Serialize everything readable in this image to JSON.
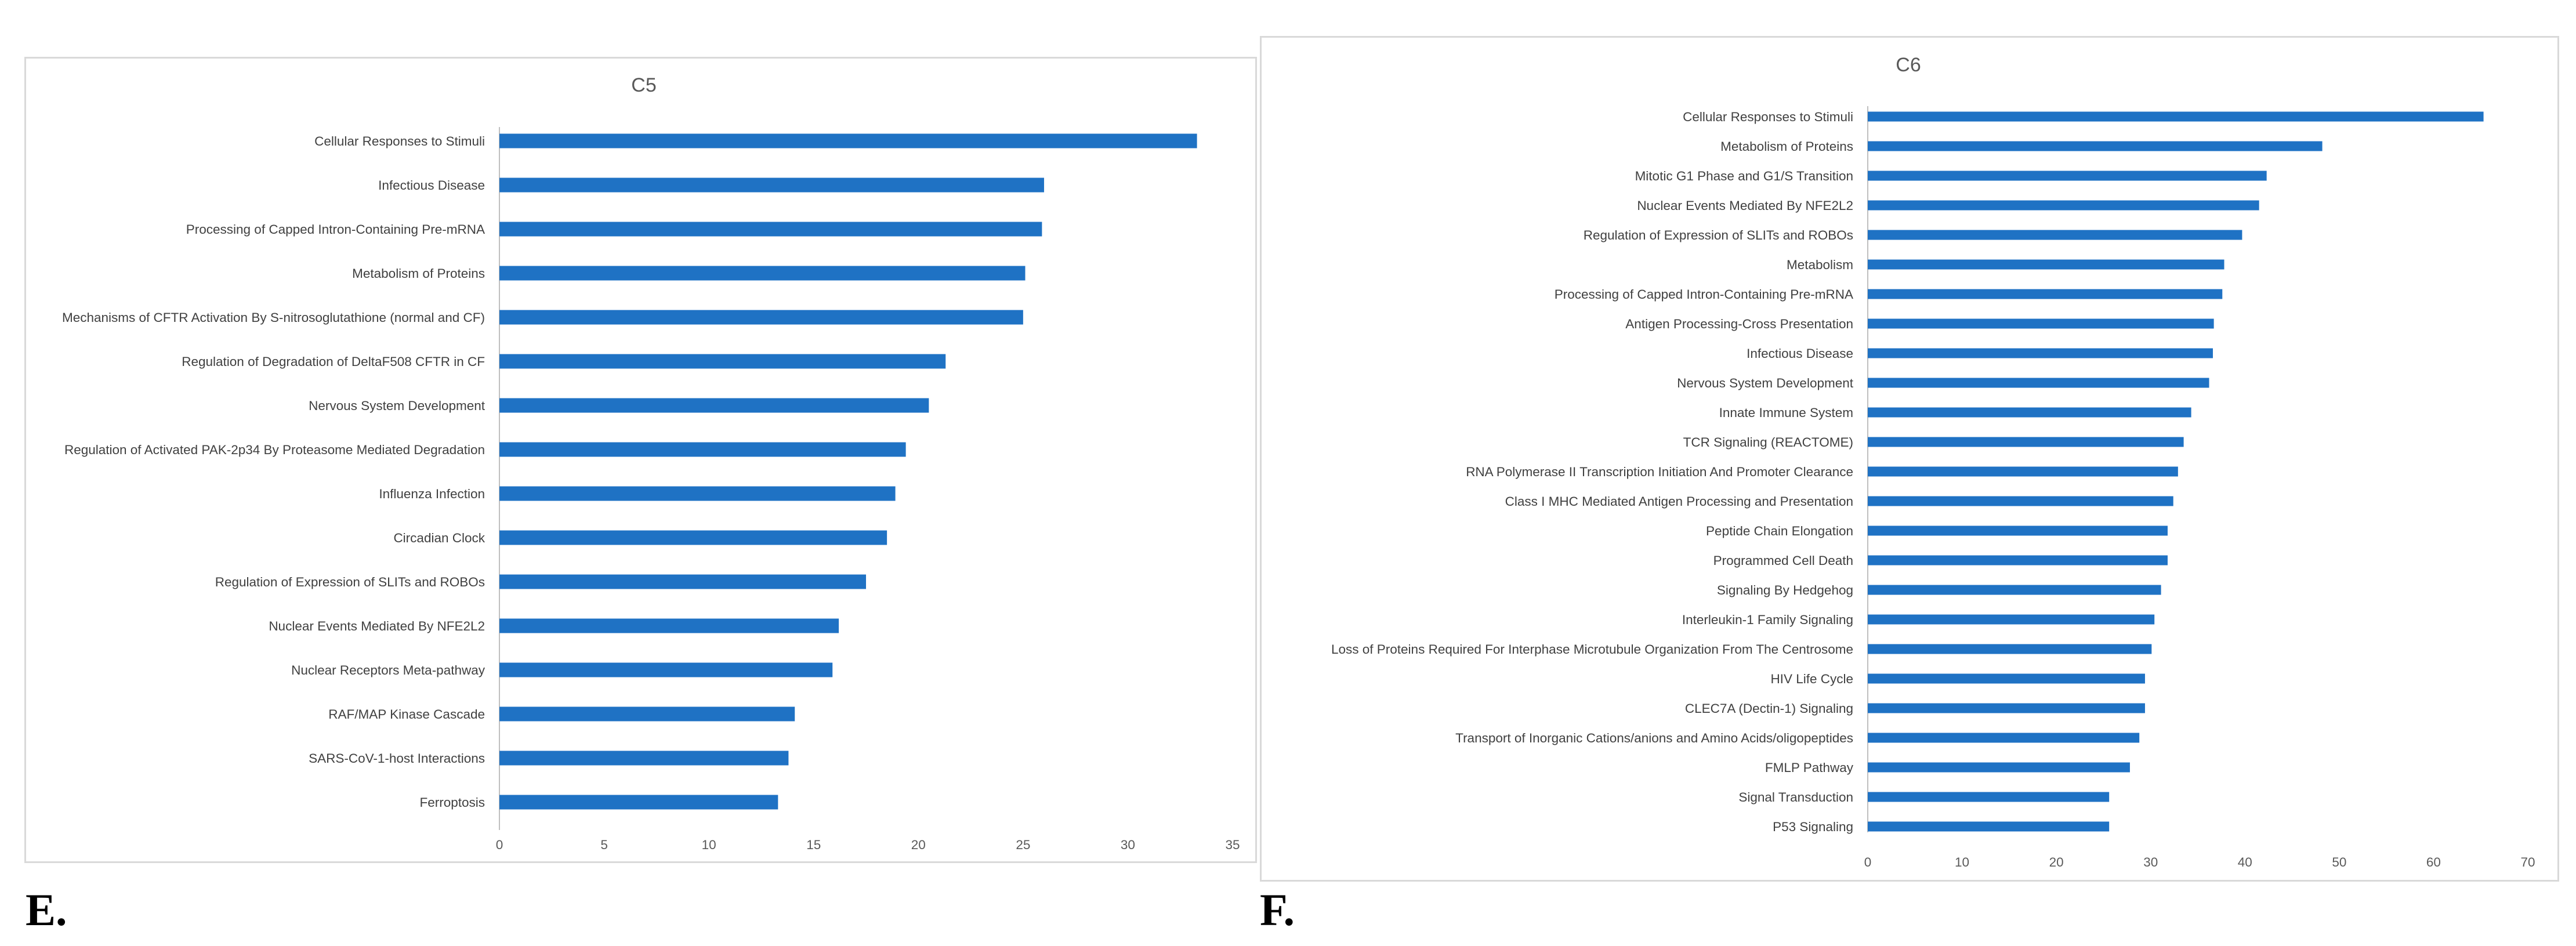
{
  "panel_labels": {
    "left": "E.",
    "right": "F."
  },
  "colors": {
    "bar": "#1f72c4",
    "axis": "#bfbfbf",
    "text": "#404040"
  },
  "chart_data": [
    {
      "type": "bar",
      "orientation": "horizontal",
      "title": "C5",
      "xlabel": "",
      "ylabel": "",
      "xlim": [
        0,
        35
      ],
      "xticks": [
        0,
        5,
        10,
        15,
        20,
        25,
        30,
        35
      ],
      "categories": [
        "Cellular Responses to Stimuli",
        "Infectious Disease",
        "Processing of Capped Intron-Containing Pre-mRNA",
        "Metabolism of Proteins",
        "Mechanisms of CFTR Activation By S-nitrosoglutathione (normal and CF)",
        "Regulation of Degradation of DeltaF508 CFTR in CF",
        "Nervous System Development",
        "Regulation of Activated PAK-2p34 By Proteasome Mediated Degradation",
        "Influenza Infection",
        "Circadian Clock",
        "Regulation of Expression of SLITs and ROBOs",
        "Nuclear Events Mediated By NFE2L2",
        "Nuclear Receptors Meta-pathway",
        "RAF/MAP Kinase Cascade",
        "SARS-CoV-1-host Interactions",
        "Ferroptosis"
      ],
      "values": [
        33.3,
        26.0,
        25.9,
        25.1,
        25.0,
        21.3,
        20.5,
        19.4,
        18.9,
        18.5,
        17.5,
        16.2,
        15.9,
        14.1,
        13.8,
        13.3
      ]
    },
    {
      "type": "bar",
      "orientation": "horizontal",
      "title": "C6",
      "xlabel": "",
      "ylabel": "",
      "xlim": [
        0,
        70
      ],
      "xticks": [
        0,
        10,
        20,
        30,
        40,
        50,
        60,
        70
      ],
      "categories": [
        "Cellular Responses to Stimuli",
        "Metabolism of Proteins",
        "Mitotic G1 Phase and G1/S Transition",
        "Nuclear Events Mediated By NFE2L2",
        "Regulation of Expression of SLITs and ROBOs",
        "Metabolism",
        "Processing of Capped Intron-Containing Pre-mRNA",
        "Antigen Processing-Cross Presentation",
        "Infectious Disease",
        "Nervous System Development",
        "Innate Immune System",
        "TCR Signaling (REACTOME)",
        "RNA Polymerase II Transcription Initiation And Promoter Clearance",
        "Class I MHC Mediated Antigen Processing and Presentation",
        "Peptide Chain Elongation",
        "Programmed Cell Death",
        "Signaling By Hedgehog",
        "Interleukin-1 Family Signaling",
        "Loss of Proteins Required For Interphase Microtubule Organization From The Centrosome",
        "HIV Life Cycle",
        "CLEC7A (Dectin-1) Signaling",
        "Transport of Inorganic Cations/anions and Amino Acids/oligopeptides",
        "FMLP Pathway",
        "Signal Transduction",
        "P53 Signaling"
      ],
      "values": [
        65.3,
        48.2,
        42.3,
        41.5,
        39.7,
        37.8,
        37.6,
        36.7,
        36.6,
        36.2,
        34.3,
        33.5,
        32.9,
        32.4,
        31.8,
        31.8,
        31.1,
        30.4,
        30.1,
        29.4,
        29.4,
        28.8,
        27.8,
        25.6,
        25.6
      ]
    }
  ]
}
